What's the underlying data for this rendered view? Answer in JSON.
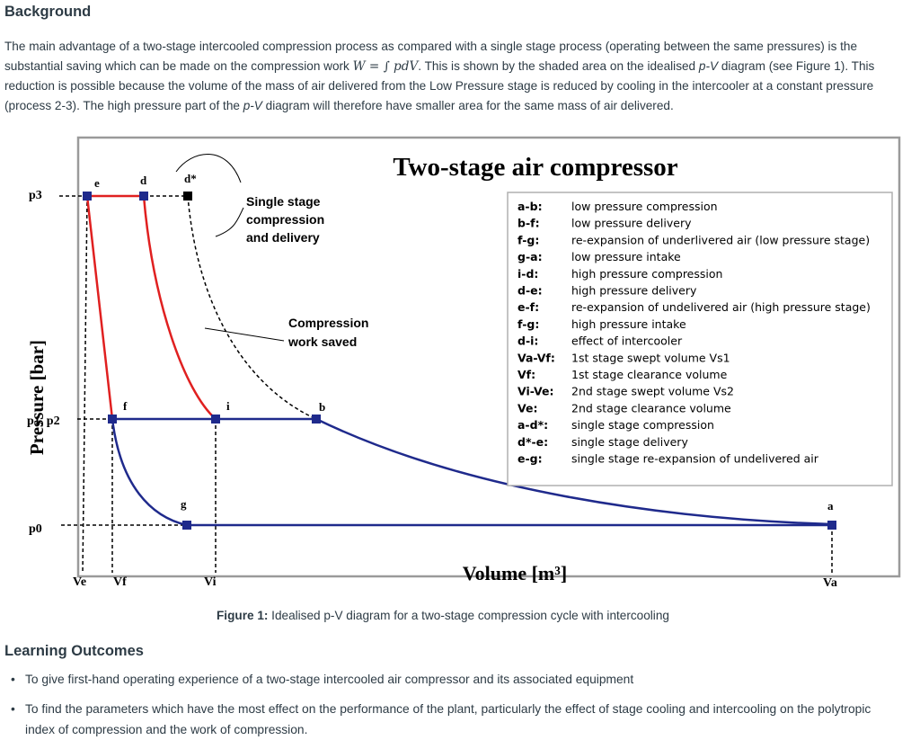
{
  "background": {
    "heading": "Background",
    "intro_part1": "The main advantage of a two-stage intercooled compression process as compared with a single stage process (operating between the same pressures) is the substantial saving which can be made on the compression work ",
    "intro_formula": "W = ∫ pdV",
    "intro_part2": ". This is shown by the shaded area on the idealised ",
    "intro_pv": "p-V",
    "intro_part3": " diagram (see Figure 1). This reduction is possible because the volume of the mass of air delivered from the Low Pressure stage is reduced by cooling in the intercooler at a constant pressure (process 2-3). The high pressure part of the ",
    "intro_pv2": "p-V",
    "intro_part4": " diagram will therefore have smaller area for the same mass of air delivered."
  },
  "figure": {
    "title": "Two-stage air compressor",
    "ylabel": "Pressure [bar]",
    "xlabel": "Volume [m³]",
    "caption_label": "Figure 1:",
    "caption_text": " Idealised p-V diagram for a two-stage compression cycle with intercooling",
    "y_ticks": [
      "p3",
      "p1, p2",
      "p0"
    ],
    "x_ticks": [
      "Ve",
      "Vf",
      "Vi",
      "Va"
    ],
    "points": [
      "e",
      "d",
      "d*",
      "f",
      "i",
      "b",
      "g",
      "a"
    ],
    "annotation_single_stage": [
      "Single stage",
      "compression",
      "and delivery"
    ],
    "annotation_work_saved": [
      "Compression",
      "work saved"
    ],
    "colors": {
      "low_stage": "#1f2a8c",
      "high_stage": "#e02020",
      "single_stage": "#000000"
    },
    "legend": [
      {
        "key": "a-b:",
        "desc": "low pressure compression"
      },
      {
        "key": "b-f:",
        "desc": "low pressure delivery"
      },
      {
        "key": "f-g:",
        "desc": "re-expansion of underlivered air (low pressure stage)"
      },
      {
        "key": "g-a:",
        "desc": "low pressure intake"
      },
      {
        "key": "i-d:",
        "desc": "high pressure compression"
      },
      {
        "key": "d-e:",
        "desc": "high pressure delivery"
      },
      {
        "key": "e-f:",
        "desc": "re-expansion of undelivered air (high pressure stage)"
      },
      {
        "key": "f-g:",
        "desc": "high pressure intake"
      },
      {
        "key": "d-i:",
        "desc": "effect of intercooler"
      },
      {
        "key": "Va-Vf:",
        "desc": "1st stage swept volume Vs1"
      },
      {
        "key": "Vf:",
        "desc": "1st stage clearance volume"
      },
      {
        "key": "Vi-Ve:",
        "desc": "2nd stage swept volume Vs2"
      },
      {
        "key": "Ve:",
        "desc": "2nd stage clearance volume"
      },
      {
        "key": "a-d*:",
        "desc": "single stage compression"
      },
      {
        "key": "d*-e:",
        "desc": "single stage delivery"
      },
      {
        "key": "e-g:",
        "desc": "single stage re-expansion of undelivered air"
      }
    ]
  },
  "learning_outcomes": {
    "heading": "Learning Outcomes",
    "items": [
      "To give first-hand operating experience of a two-stage intercooled air compressor and its associated equipment",
      "To find the parameters which have the most effect on the performance of the plant, particularly the effect of stage cooling and intercooling on the polytropic index of compression and the work of compression."
    ]
  }
}
